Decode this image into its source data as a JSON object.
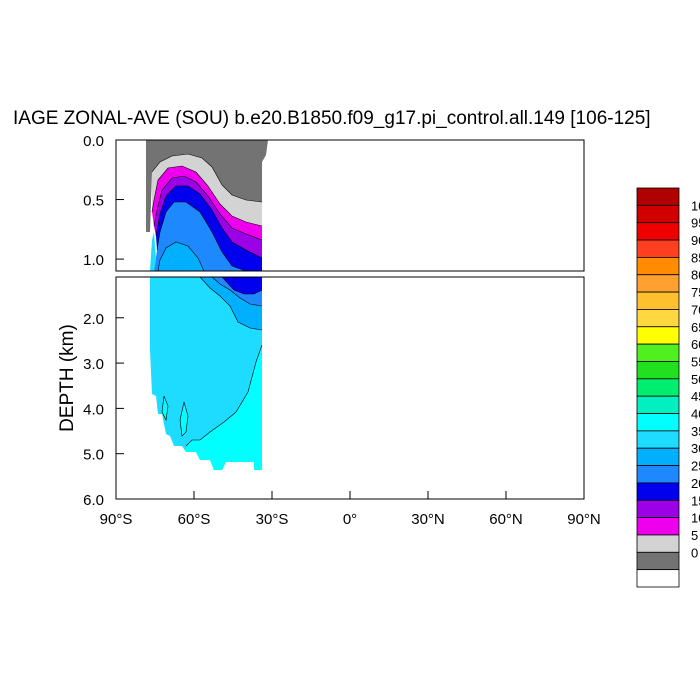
{
  "chart_data": {
    "type": "heatmap",
    "title": "IAGE ZONAL-AVE (SOU) b.e20.B1850.f09_g17.pi_control.all.149 [106-125]",
    "ylabel": "DEPTH (km)",
    "xlabel": "",
    "x_ticks": [
      "90°S",
      "60°S",
      "30°S",
      "0°",
      "30°N",
      "60°N",
      "90°N"
    ],
    "x_tick_values": [
      -90,
      -60,
      -30,
      0,
      30,
      60,
      90
    ],
    "y_ticks_upper": [
      "0.0",
      "0.5",
      "1.0"
    ],
    "y_tick_values_upper": [
      0.0,
      0.5,
      1.0
    ],
    "y_ticks_lower": [
      "2.0",
      "3.0",
      "4.0",
      "5.0",
      "6.0"
    ],
    "y_tick_values_lower": [
      2.0,
      3.0,
      4.0,
      5.0,
      6.0
    ],
    "xlim": [
      -90,
      90
    ],
    "ylim_upper": [
      0.0,
      1.1
    ],
    "ylim_lower": [
      1.1,
      6.0
    ],
    "legend_placement": "right",
    "colorbar_labels": [
      "0",
      "5",
      "10",
      "15",
      "20",
      "25",
      "30",
      "35",
      "40",
      "45",
      "50",
      "55",
      "60",
      "65",
      "70",
      "75",
      "80",
      "85",
      "90",
      "95",
      "10"
    ],
    "colorbar_colors": [
      "#ffffff",
      "#737373",
      "#d3d3d3",
      "#ee00ee",
      "#9b00e6",
      "#0000ee",
      "#0080ff",
      "#00acff",
      "#1ad6ff",
      "#00ffff",
      "#00ffc4",
      "#00ff80",
      "#00f000",
      "#40f000",
      "#ffff00",
      "#ffd729",
      "#ffb000",
      "#ff9000",
      "#ff7000",
      "#ee1000",
      "#ee0000",
      "#cc0000"
    ],
    "colorbar_fill_colors": [
      "#ffffff",
      "#737373",
      "#d3d3d3",
      "#ee00ee",
      "#9b00e6",
      "#0000ee",
      "#1e88ff",
      "#00b0ff",
      "#1edcff",
      "#00ffff",
      "#00f0c0",
      "#00ee70",
      "#20e020",
      "#50f020",
      "#ffff00",
      "#ffd740",
      "#ffc030",
      "#ffa030",
      "#ff8c00",
      "#ff4020",
      "#ee0000",
      "#d00000",
      "#b00000"
    ]
  },
  "icons": {
    "land_mask": "gray-land-mask"
  }
}
